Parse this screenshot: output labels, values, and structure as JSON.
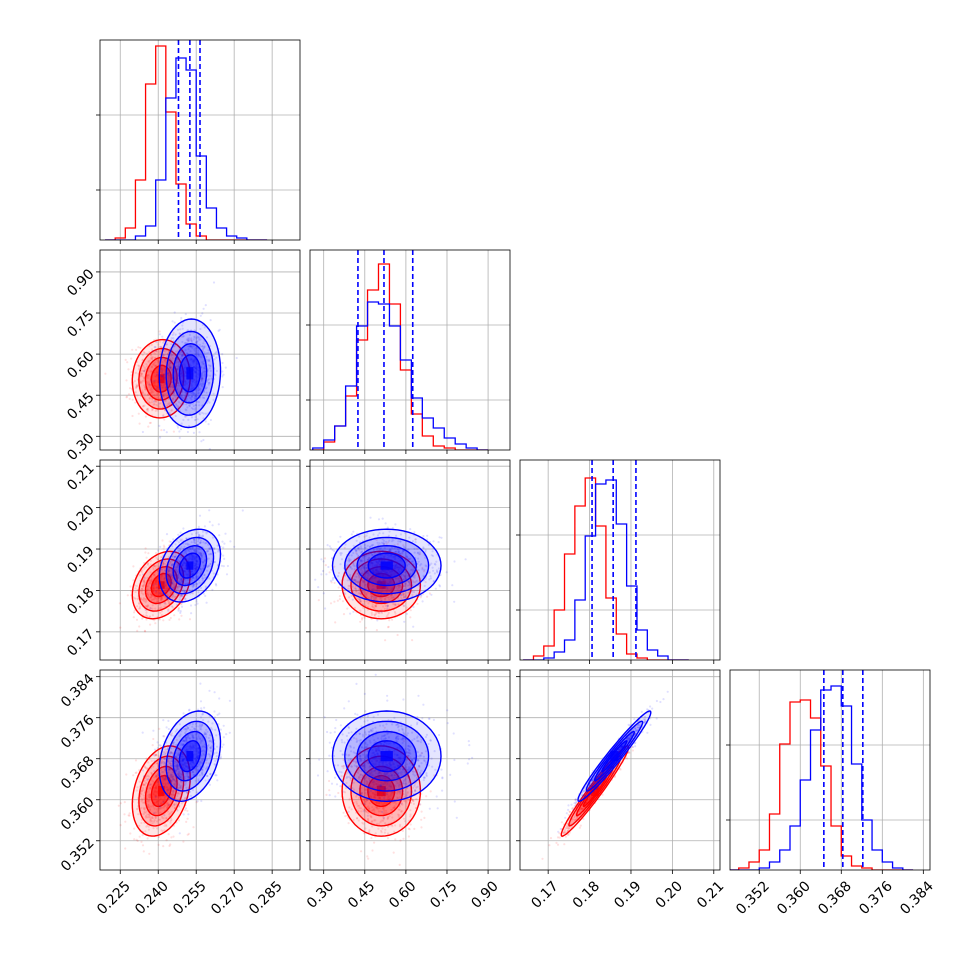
{
  "chart_data": {
    "type": "corner",
    "colors": {
      "red": "#ff0000",
      "blue": "#0000ff"
    },
    "grid": true,
    "params": [
      {
        "range": [
          0.217,
          0.296
        ],
        "ticks": [
          "0.225",
          "0.240",
          "0.255",
          "0.270",
          "0.285"
        ],
        "hist_bins": [
          0.221,
          0.225,
          0.229,
          0.233,
          0.237,
          0.241,
          0.245,
          0.249,
          0.253,
          0.257,
          0.261,
          0.265,
          0.269,
          0.273,
          0.277,
          0.281
        ],
        "hist_red": [
          0.0,
          0.01,
          0.06,
          0.3,
          0.78,
          0.97,
          0.64,
          0.28,
          0.08,
          0.02,
          0.0,
          0.0,
          0.0,
          0.0,
          0.0,
          0.0
        ],
        "hist_blue": [
          0.0,
          0.0,
          0.0,
          0.02,
          0.07,
          0.3,
          0.71,
          0.91,
          0.85,
          0.42,
          0.16,
          0.06,
          0.02,
          0.01,
          0.0,
          0.0
        ],
        "quantiles": [
          0.248,
          0.2525,
          0.2565
        ]
      },
      {
        "range": [
          0.25,
          0.98
        ],
        "ticks": [
          "0.30",
          "0.45",
          "0.60",
          "0.75",
          "0.90"
        ],
        "hist_bins": [
          0.28,
          0.32,
          0.36,
          0.4,
          0.44,
          0.48,
          0.52,
          0.56,
          0.6,
          0.64,
          0.68,
          0.72,
          0.76,
          0.8,
          0.84,
          0.88
        ],
        "hist_red": [
          0.0,
          0.04,
          0.12,
          0.27,
          0.55,
          0.8,
          0.93,
          0.73,
          0.4,
          0.18,
          0.07,
          0.02,
          0.01,
          0.0,
          0.0,
          0.0
        ],
        "hist_blue": [
          0.01,
          0.05,
          0.12,
          0.32,
          0.62,
          0.74,
          0.73,
          0.62,
          0.45,
          0.26,
          0.16,
          0.11,
          0.06,
          0.03,
          0.01,
          0.0
        ],
        "quantiles": [
          0.425,
          0.52,
          0.625
        ]
      },
      {
        "range": [
          0.1632,
          0.2115
        ],
        "ticks": [
          "0.17",
          "0.18",
          "0.19",
          "0.20",
          "0.21"
        ],
        "hist_bins": [
          0.1652,
          0.1677,
          0.1702,
          0.1727,
          0.1752,
          0.1777,
          0.1802,
          0.1827,
          0.1852,
          0.1877,
          0.1902,
          0.1927,
          0.1952,
          0.1977,
          0.2002,
          0.2027
        ],
        "hist_red": [
          0.0,
          0.02,
          0.07,
          0.25,
          0.53,
          0.77,
          0.91,
          0.67,
          0.31,
          0.13,
          0.03,
          0.01,
          0.0,
          0.0,
          0.0,
          0.0
        ],
        "hist_blue": [
          0.0,
          0.0,
          0.01,
          0.04,
          0.1,
          0.3,
          0.62,
          0.88,
          0.9,
          0.68,
          0.37,
          0.15,
          0.05,
          0.02,
          0.0,
          0.0
        ],
        "quantiles": [
          0.1806,
          0.1857,
          0.1912
        ]
      },
      {
        "range": [
          0.3463,
          0.3853
        ],
        "ticks": [
          "0.352",
          "0.360",
          "0.368",
          "0.376",
          "0.384"
        ],
        "hist_bins": [
          0.347,
          0.349,
          0.351,
          0.353,
          0.355,
          0.357,
          0.359,
          0.361,
          0.363,
          0.365,
          0.367,
          0.369,
          0.371,
          0.373,
          0.375,
          0.377,
          0.379,
          0.381
        ],
        "hist_red": [
          0.0,
          0.01,
          0.04,
          0.1,
          0.28,
          0.63,
          0.84,
          0.85,
          0.76,
          0.52,
          0.22,
          0.07,
          0.02,
          0.01,
          0.0,
          0.0,
          0.0,
          0.0
        ],
        "hist_blue": [
          0.0,
          0.0,
          0.0,
          0.01,
          0.04,
          0.1,
          0.22,
          0.45,
          0.7,
          0.9,
          0.92,
          0.82,
          0.53,
          0.25,
          0.1,
          0.04,
          0.01,
          0.0
        ],
        "quantiles": [
          0.3646,
          0.3683,
          0.3722
        ]
      }
    ],
    "samples": [
      {
        "color": "red",
        "mean": [
          0.2412,
          0.51,
          0.1813,
          0.3617
        ],
        "sd": [
          0.0052,
          0.065,
          0.0037,
          0.004
        ]
      },
      {
        "color": "blue",
        "mean": [
          0.2525,
          0.53,
          0.186,
          0.3685
        ],
        "sd": [
          0.0055,
          0.09,
          0.004,
          0.004
        ]
      }
    ],
    "correlations": [
      [
        1.0,
        0.05,
        0.3,
        0.3
      ],
      [
        0.05,
        1.0,
        0.0,
        0.0
      ],
      [
        0.3,
        0.0,
        1.0,
        0.97
      ],
      [
        0.3,
        0.0,
        0.97,
        1.0
      ]
    ]
  }
}
